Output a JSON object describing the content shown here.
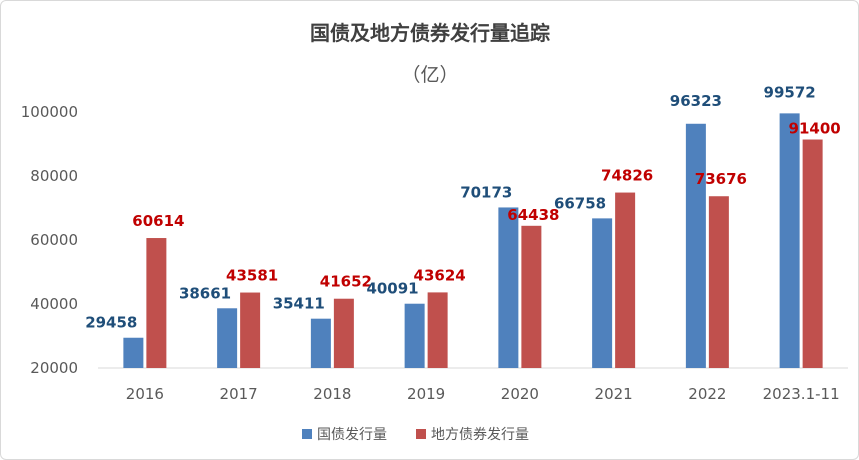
{
  "chart_data": {
    "type": "bar",
    "title": "国债及地方债券发行量追踪",
    "subtitle": "（亿）",
    "categories": [
      "2016",
      "2017",
      "2018",
      "2019",
      "2020",
      "2021",
      "2022",
      "2023.1-11"
    ],
    "series": [
      {
        "name": "国债发行量",
        "values": [
          29458,
          38661,
          35411,
          40091,
          70173,
          66758,
          96323,
          99572
        ],
        "color": "#4f81bd",
        "label_color": "#1f4e79"
      },
      {
        "name": "地方债券发行量",
        "values": [
          60614,
          43581,
          41652,
          43624,
          64438,
          74826,
          73676,
          91400
        ],
        "color": "#c0504d",
        "label_color": "#c00000"
      }
    ],
    "ylim": [
      20000,
      100000
    ],
    "yticks": [
      20000,
      40000,
      60000,
      80000,
      100000
    ],
    "grid": false,
    "legend": "bottom"
  }
}
